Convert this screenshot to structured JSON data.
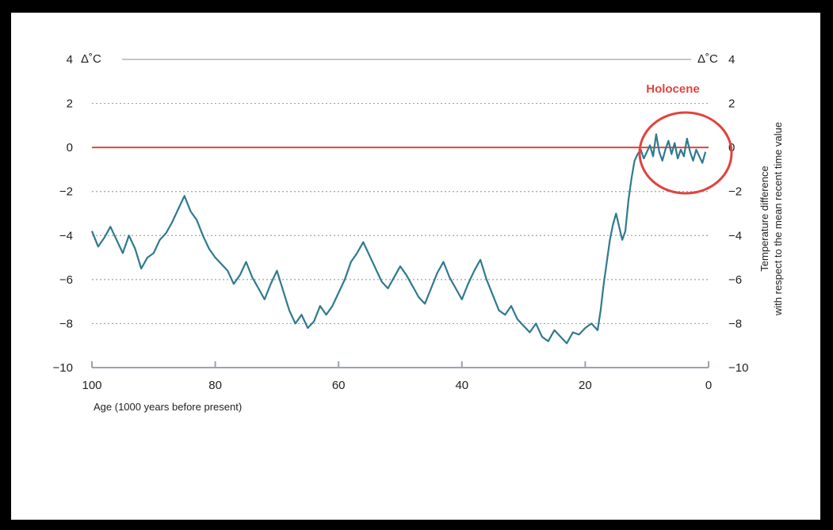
{
  "chart_data": {
    "type": "line",
    "title": "",
    "xlabel": "Age (1000 years before present)",
    "ylabel_line1": "Temperature difference",
    "ylabel_line2": "with respect to the mean recent time value",
    "y_unit_left": "Δ˚C",
    "y_unit_right": "Δ˚C",
    "xlim": [
      100,
      0
    ],
    "ylim": [
      -10,
      4
    ],
    "x_reversed": true,
    "x_ticks": [
      {
        "value": 100,
        "label": "100"
      },
      {
        "value": 80,
        "label": "80"
      },
      {
        "value": 60,
        "label": "60"
      },
      {
        "value": 40,
        "label": "40"
      },
      {
        "value": 20,
        "label": "20"
      },
      {
        "value": 0,
        "label": "0"
      }
    ],
    "y_ticks": [
      {
        "value": 4,
        "label": "4"
      },
      {
        "value": 2,
        "label": "2"
      },
      {
        "value": 0,
        "label": "0"
      },
      {
        "value": -2,
        "label": "−2"
      },
      {
        "value": -4,
        "label": "−4"
      },
      {
        "value": -6,
        "label": "−6"
      },
      {
        "value": -8,
        "label": "−8"
      },
      {
        "value": -10,
        "label": "−10"
      }
    ],
    "grid": "horizontal dotted",
    "reference_line": {
      "y": 0,
      "color": "#e0443e"
    },
    "series": [
      {
        "color": "#2f7a8e",
        "x": [
          100,
          99,
          98,
          97,
          96,
          95,
          94,
          93,
          92,
          91,
          90,
          89,
          88,
          87,
          86,
          85,
          84,
          83,
          82,
          81,
          80,
          79,
          78,
          77,
          76,
          75,
          74,
          73,
          72,
          71,
          70,
          69,
          68,
          67,
          66,
          65,
          64,
          63,
          62,
          61,
          60,
          59,
          58,
          57,
          56,
          55,
          54,
          53,
          52,
          51,
          50,
          49,
          48,
          47,
          46,
          45,
          44,
          43,
          42,
          41,
          40,
          39,
          38,
          37,
          36,
          35,
          34,
          33,
          32,
          31,
          30,
          29,
          28,
          27,
          26,
          25,
          24,
          23,
          22,
          21,
          20,
          19,
          18,
          17.5,
          17,
          16.5,
          16,
          15.5,
          15,
          14.5,
          14,
          13.5,
          13,
          12.5,
          12,
          11.5,
          11,
          10.5,
          10,
          9.5,
          9,
          8.5,
          8,
          7.5,
          7,
          6.5,
          6,
          5.5,
          5,
          4.5,
          4,
          3.5,
          3,
          2.5,
          2,
          1.5,
          1,
          0.5
        ],
        "y": [
          -3.8,
          -4.5,
          -4.1,
          -3.6,
          -4.2,
          -4.8,
          -4.0,
          -4.6,
          -5.5,
          -5.0,
          -4.8,
          -4.2,
          -3.9,
          -3.4,
          -2.8,
          -2.2,
          -2.9,
          -3.3,
          -4.0,
          -4.6,
          -5.0,
          -5.3,
          -5.6,
          -6.2,
          -5.8,
          -5.2,
          -5.9,
          -6.4,
          -6.9,
          -6.2,
          -5.6,
          -6.5,
          -7.4,
          -8.0,
          -7.6,
          -8.2,
          -7.9,
          -7.2,
          -7.6,
          -7.2,
          -6.6,
          -6.0,
          -5.2,
          -4.8,
          -4.3,
          -4.9,
          -5.5,
          -6.1,
          -6.4,
          -5.9,
          -5.4,
          -5.8,
          -6.3,
          -6.8,
          -7.1,
          -6.4,
          -5.7,
          -5.2,
          -5.9,
          -6.4,
          -6.9,
          -6.2,
          -5.6,
          -5.1,
          -6.0,
          -6.7,
          -7.4,
          -7.6,
          -7.2,
          -7.8,
          -8.1,
          -8.4,
          -8.0,
          -8.6,
          -8.8,
          -8.3,
          -8.6,
          -8.9,
          -8.4,
          -8.5,
          -8.2,
          -8.0,
          -8.3,
          -7.4,
          -6.2,
          -5.2,
          -4.2,
          -3.5,
          -3.0,
          -3.6,
          -4.2,
          -3.8,
          -2.4,
          -1.4,
          -0.6,
          -0.3,
          -0.1,
          -0.5,
          -0.2,
          0.1,
          -0.4,
          0.6,
          -0.2,
          -0.6,
          -0.1,
          0.3,
          -0.3,
          0.2,
          -0.5,
          -0.1,
          -0.4,
          0.4,
          -0.2,
          -0.6,
          -0.1,
          -0.4,
          -0.7,
          -0.2
        ]
      }
    ],
    "annotation": {
      "text": "Holocene",
      "color": "#e0443e"
    }
  }
}
